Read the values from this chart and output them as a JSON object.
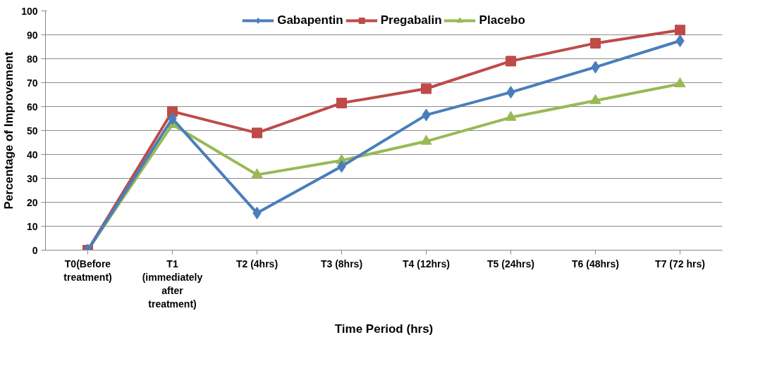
{
  "chart_data": {
    "type": "line",
    "xlabel": "Time Period (hrs)",
    "ylabel": "Percentage of Improvement",
    "categories": [
      "T0(Before treatment)",
      "T1 (immediately after treatment)",
      "T2 (4hrs)",
      "T3 (8hrs)",
      "T4 (12hrs)",
      "T5 (24hrs)",
      "T6 (48hrs)",
      "T7 (72 hrs)"
    ],
    "series": [
      {
        "name": "Gabapentin",
        "color": "#4a7ebb",
        "marker": "diamond",
        "values": [
          0,
          55,
          15.5,
          35,
          56.5,
          66,
          76.5,
          87.5
        ]
      },
      {
        "name": "Pregabalin",
        "color": "#be4b48",
        "marker": "square",
        "values": [
          0,
          58,
          49,
          61.5,
          67.5,
          79,
          86.5,
          92
        ]
      },
      {
        "name": "Placebo",
        "color": "#98b954",
        "marker": "triangle",
        "values": [
          0,
          52.5,
          31.5,
          37.5,
          45.5,
          55.5,
          62.5,
          69.5
        ]
      }
    ],
    "ylim": [
      0,
      100
    ],
    "yticks": [
      0,
      10,
      20,
      30,
      40,
      50,
      60,
      70,
      80,
      90,
      100
    ],
    "grid": "y",
    "legend": "top",
    "line_style": "solid"
  }
}
